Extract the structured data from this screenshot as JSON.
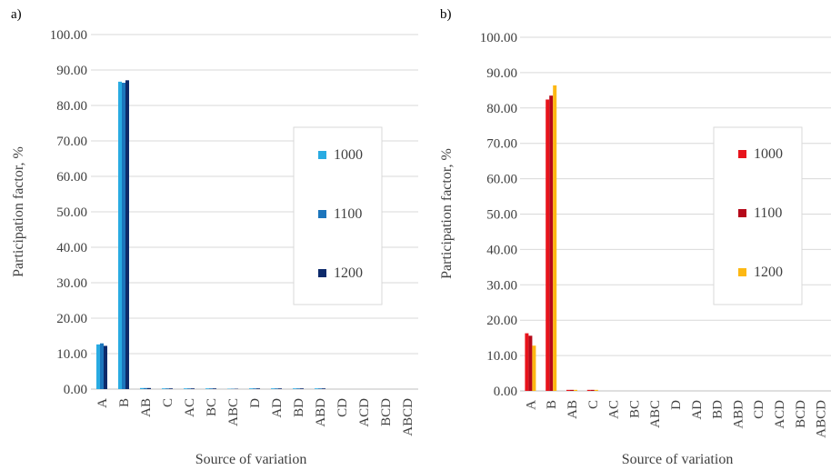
{
  "chart_data": [
    {
      "type": "bar",
      "panel_label": "a)",
      "title": "",
      "xlabel": "Source of variation",
      "ylabel": "Participation factor, %",
      "ylim": [
        0,
        100
      ],
      "yticks": [
        "0.00",
        "10.00",
        "20.00",
        "30.00",
        "40.00",
        "50.00",
        "60.00",
        "70.00",
        "80.00",
        "90.00",
        "100.00"
      ],
      "grid": true,
      "legend_position": "right",
      "categories": [
        "A",
        "B",
        "AB",
        "C",
        "AC",
        "BC",
        "ABC",
        "D",
        "AD",
        "BD",
        "ABD",
        "CD",
        "ACD",
        "BCD",
        "ABCD"
      ],
      "series": [
        {
          "name": "1000",
          "color": "#29ABE2",
          "values": [
            12.6,
            86.7,
            0.3,
            0.2,
            0.2,
            0.2,
            0.1,
            0.2,
            0.2,
            0.2,
            0.2,
            0.0,
            0.0,
            0.0,
            0.0
          ]
        },
        {
          "name": "1100",
          "color": "#1C75BC",
          "values": [
            12.9,
            86.4,
            0.3,
            0.2,
            0.2,
            0.2,
            0.1,
            0.2,
            0.2,
            0.2,
            0.2,
            0.0,
            0.0,
            0.0,
            0.0
          ]
        },
        {
          "name": "1200",
          "color": "#0D2A6B",
          "values": [
            12.2,
            87.1,
            0.3,
            0.2,
            0.2,
            0.2,
            0.1,
            0.2,
            0.2,
            0.2,
            0.2,
            0.0,
            0.0,
            0.0,
            0.0
          ]
        }
      ]
    },
    {
      "type": "bar",
      "panel_label": "b)",
      "title": "",
      "xlabel": "Source of variation",
      "ylabel": "Participation factor, %",
      "ylim": [
        0,
        100
      ],
      "yticks": [
        "0.00",
        "10.00",
        "20.00",
        "30.00",
        "40.00",
        "50.00",
        "60.00",
        "70.00",
        "80.00",
        "90.00",
        "100.00"
      ],
      "grid": true,
      "legend_position": "right",
      "categories": [
        "A",
        "B",
        "AB",
        "C",
        "AC",
        "BC",
        "ABC",
        "D",
        "AD",
        "BD",
        "ABD",
        "CD",
        "ACD",
        "BCD",
        "ABCD"
      ],
      "series": [
        {
          "name": "1000",
          "color": "#E8141C",
          "values": [
            16.3,
            82.4,
            0.3,
            0.3,
            0.0,
            0.0,
            0.0,
            0.0,
            0.0,
            0.0,
            0.0,
            0.0,
            0.0,
            0.0,
            0.0
          ]
        },
        {
          "name": "1100",
          "color": "#B5091A",
          "values": [
            15.6,
            83.5,
            0.3,
            0.3,
            0.0,
            0.0,
            0.0,
            0.0,
            0.0,
            0.0,
            0.0,
            0.0,
            0.0,
            0.0,
            0.0
          ]
        },
        {
          "name": "1200",
          "color": "#FDB813",
          "values": [
            12.8,
            86.4,
            0.3,
            0.3,
            0.0,
            0.0,
            0.0,
            0.0,
            0.0,
            0.0,
            0.0,
            0.0,
            0.0,
            0.0,
            0.0
          ]
        }
      ]
    }
  ]
}
